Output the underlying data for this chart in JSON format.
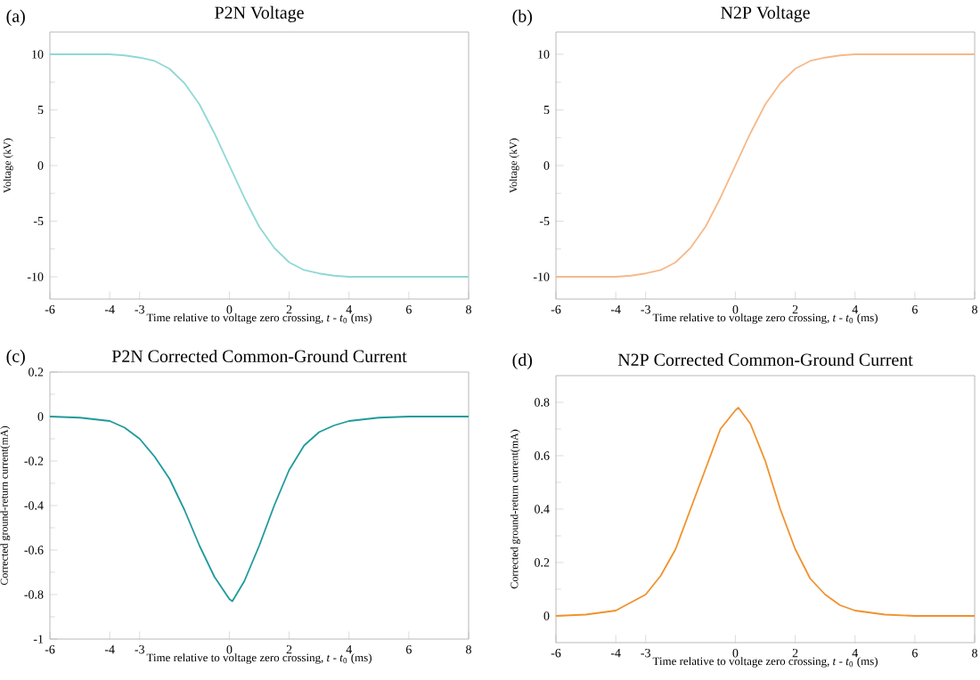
{
  "chart_data": [
    {
      "type": "line",
      "title": "P2N Voltage",
      "annotations": [
        "(a)"
      ],
      "xlabel": "Time relative to voltage zero crossing,  *t* - *t*$_{0}$ (ms)",
      "ylabel": "Voltage (kV)",
      "color": "#8fd8d6",
      "x": [
        -6,
        -5,
        -4,
        -3.5,
        -3,
        -2.5,
        -2,
        -1.5,
        -1,
        -0.5,
        0,
        0.5,
        1,
        1.5,
        2,
        2.5,
        3,
        3.5,
        4,
        5,
        6,
        7,
        8
      ],
      "values": [
        10,
        10,
        10,
        9.9,
        9.7,
        9.4,
        8.7,
        7.4,
        5.5,
        2.9,
        0,
        -2.9,
        -5.5,
        -7.4,
        -8.7,
        -9.4,
        -9.7,
        -9.9,
        -10,
        -10,
        -10,
        -10,
        -10
      ],
      "xlim": [
        -6,
        8
      ],
      "ylim": [
        -12,
        12
      ],
      "xticks": [
        -6,
        -4,
        -3,
        0,
        2,
        4,
        6,
        8
      ],
      "yticks": [
        -10,
        -5,
        0,
        5,
        10
      ]
    },
    {
      "type": "line",
      "title": "N2P Voltage",
      "annotations": [
        "(b)"
      ],
      "xlabel": "Time relative to voltage zero crossing,  *t* - *t*$_{0}$ (ms)",
      "ylabel": "Voltage (kV)",
      "color": "#f5b98a",
      "x": [
        -6,
        -5,
        -4,
        -3.5,
        -3,
        -2.5,
        -2,
        -1.5,
        -1,
        -0.5,
        0,
        0.5,
        1,
        1.5,
        2,
        2.5,
        3,
        3.5,
        4,
        5,
        6,
        7,
        8
      ],
      "values": [
        -10,
        -10,
        -10,
        -9.9,
        -9.7,
        -9.4,
        -8.7,
        -7.4,
        -5.5,
        -2.9,
        0,
        2.9,
        5.5,
        7.4,
        8.7,
        9.4,
        9.7,
        9.9,
        10,
        10,
        10,
        10,
        10
      ],
      "xlim": [
        -6,
        8
      ],
      "ylim": [
        -12,
        12
      ],
      "xticks": [
        -6,
        -4,
        -3,
        0,
        2,
        4,
        6,
        8
      ],
      "yticks": [
        -10,
        -5,
        0,
        5,
        10
      ]
    },
    {
      "type": "line",
      "title": "P2N Corrected Common-Ground Current",
      "annotations": [
        "(c)"
      ],
      "xlabel": "Time relative to voltage zero crossing,  *t* - *t*$_{0}$ (ms)",
      "ylabel": "Corrected ground-return current(mA)",
      "color": "#1f9a9c",
      "x": [
        -6,
        -5,
        -4,
        -3.5,
        -3,
        -2.5,
        -2,
        -1.5,
        -1,
        -0.5,
        0,
        0.1,
        0.5,
        1,
        1.5,
        2,
        2.5,
        3,
        3.5,
        4,
        5,
        6,
        7,
        8
      ],
      "values": [
        0,
        -0.005,
        -0.02,
        -0.05,
        -0.1,
        -0.18,
        -0.28,
        -0.42,
        -0.58,
        -0.72,
        -0.82,
        -0.83,
        -0.74,
        -0.58,
        -0.4,
        -0.24,
        -0.13,
        -0.07,
        -0.04,
        -0.02,
        -0.005,
        0,
        0,
        0
      ],
      "xlim": [
        -6,
        8
      ],
      "ylim": [
        -1,
        0.2
      ],
      "xticks": [
        -6,
        -4,
        -3,
        0,
        2,
        4,
        6,
        8
      ],
      "yticks": [
        -1,
        -0.8,
        -0.6,
        -0.4,
        -0.2,
        0,
        0.2
      ]
    },
    {
      "type": "line",
      "title": "N2P Corrected Common-Ground Current",
      "annotations": [
        "(d)"
      ],
      "xlabel": "Time relative to voltage zero crossing,  *t* - *t*$_{0}$ (ms)",
      "ylabel": "Corrected ground-return current(mA)",
      "color": "#f0922e",
      "x": [
        -6,
        -5,
        -4,
        -3.5,
        -3,
        -2.5,
        -2,
        -1.5,
        -1,
        -0.5,
        0,
        0.1,
        0.5,
        1,
        1.5,
        2,
        2.5,
        3,
        3.5,
        4,
        5,
        6,
        7,
        8
      ],
      "values": [
        0,
        0.005,
        0.02,
        0.05,
        0.08,
        0.15,
        0.25,
        0.4,
        0.55,
        0.7,
        0.77,
        0.78,
        0.72,
        0.58,
        0.4,
        0.25,
        0.14,
        0.08,
        0.04,
        0.02,
        0.005,
        0,
        0,
        0
      ],
      "xlim": [
        -6,
        8
      ],
      "ylim": [
        -0.1,
        0.9
      ],
      "xticks": [
        -6,
        -4,
        -3,
        0,
        2,
        4,
        6,
        8
      ],
      "yticks": [
        0,
        0.2,
        0.4,
        0.6,
        0.8
      ]
    }
  ]
}
